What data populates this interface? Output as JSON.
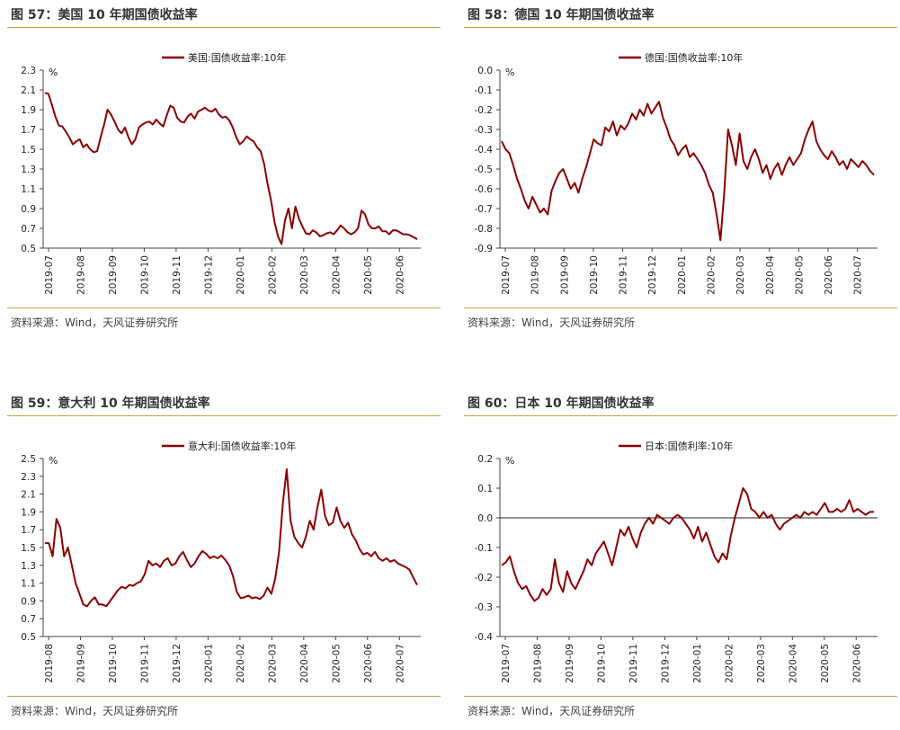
{
  "colors": {
    "line": "#8b0000",
    "rule": "#c9a04a"
  },
  "charts": [
    {
      "title": "图 57：美国 10 年期国债收益率",
      "source": "资料来源：Wind，天风证券研究所",
      "chart_data": {
        "type": "line",
        "legend": "美国:国债收益率:10年",
        "unit": "%",
        "ylim": [
          0.5,
          2.3
        ],
        "yticks": [
          0.5,
          0.7,
          0.9,
          1.1,
          1.3,
          1.5,
          1.7,
          1.9,
          2.1,
          2.3
        ],
        "xticks": [
          "2019-07",
          "2019-08",
          "2019-09",
          "2019-10",
          "2019-11",
          "2019-12",
          "2020-01",
          "2020-02",
          "2020-03",
          "2020-04",
          "2020-05",
          "2020-06"
        ],
        "zero_line": false,
        "series": [
          {
            "values": [
              2.07,
              2.06,
              1.95,
              1.83,
              1.74,
              1.73,
              1.68,
              1.62,
              1.55,
              1.58,
              1.6,
              1.52,
              1.55,
              1.5,
              1.47,
              1.48,
              1.62,
              1.75,
              1.9,
              1.85,
              1.78,
              1.7,
              1.66,
              1.72,
              1.62,
              1.55,
              1.6,
              1.72,
              1.75,
              1.77,
              1.78,
              1.75,
              1.8,
              1.76,
              1.73,
              1.84,
              1.94,
              1.92,
              1.82,
              1.78,
              1.77,
              1.83,
              1.86,
              1.81,
              1.88,
              1.9,
              1.92,
              1.89,
              1.88,
              1.91,
              1.85,
              1.82,
              1.83,
              1.79,
              1.72,
              1.62,
              1.55,
              1.58,
              1.63,
              1.6,
              1.58,
              1.52,
              1.48,
              1.35,
              1.15,
              0.98,
              0.76,
              0.62,
              0.54,
              0.78,
              0.9,
              0.7,
              0.92,
              0.8,
              0.72,
              0.65,
              0.64,
              0.68,
              0.66,
              0.62,
              0.63,
              0.65,
              0.66,
              0.64,
              0.68,
              0.73,
              0.7,
              0.66,
              0.64,
              0.66,
              0.7,
              0.88,
              0.84,
              0.74,
              0.7,
              0.7,
              0.72,
              0.67,
              0.67,
              0.64,
              0.68,
              0.68,
              0.66,
              0.64,
              0.64,
              0.63,
              0.61,
              0.59
            ]
          }
        ]
      }
    },
    {
      "title": "图 58：德国 10 年期国债收益率",
      "source": "资料来源：Wind，天风证券研究所",
      "chart_data": {
        "type": "line",
        "legend": "德国:国债收益率:10年",
        "unit": "%",
        "ylim": [
          -0.9,
          0.0
        ],
        "yticks": [
          -0.9,
          -0.8,
          -0.7,
          -0.6,
          -0.5,
          -0.4,
          -0.3,
          -0.2,
          -0.1,
          0.0
        ],
        "xticks": [
          "2019-07",
          "2019-08",
          "2019-09",
          "2019-10",
          "2019-11",
          "2019-12",
          "2020-01",
          "2020-02",
          "2020-03",
          "2020-04",
          "2020-05",
          "2020-06",
          "2020-07"
        ],
        "zero_line": false,
        "series": [
          {
            "values": [
              -0.36,
              -0.4,
              -0.42,
              -0.48,
              -0.55,
              -0.6,
              -0.66,
              -0.7,
              -0.64,
              -0.68,
              -0.72,
              -0.7,
              -0.73,
              -0.61,
              -0.56,
              -0.52,
              -0.5,
              -0.55,
              -0.6,
              -0.57,
              -0.62,
              -0.55,
              -0.49,
              -0.42,
              -0.35,
              -0.37,
              -0.38,
              -0.29,
              -0.31,
              -0.26,
              -0.33,
              -0.28,
              -0.3,
              -0.27,
              -0.22,
              -0.25,
              -0.2,
              -0.23,
              -0.17,
              -0.22,
              -0.19,
              -0.16,
              -0.24,
              -0.29,
              -0.35,
              -0.38,
              -0.43,
              -0.4,
              -0.38,
              -0.44,
              -0.42,
              -0.45,
              -0.48,
              -0.52,
              -0.58,
              -0.62,
              -0.73,
              -0.86,
              -0.62,
              -0.3,
              -0.38,
              -0.48,
              -0.32,
              -0.46,
              -0.5,
              -0.44,
              -0.4,
              -0.45,
              -0.52,
              -0.48,
              -0.55,
              -0.5,
              -0.47,
              -0.53,
              -0.48,
              -0.44,
              -0.48,
              -0.45,
              -0.42,
              -0.35,
              -0.3,
              -0.26,
              -0.36,
              -0.4,
              -0.43,
              -0.45,
              -0.41,
              -0.44,
              -0.48,
              -0.46,
              -0.5,
              -0.45,
              -0.47,
              -0.49,
              -0.46,
              -0.48,
              -0.51,
              -0.53
            ]
          }
        ]
      }
    },
    {
      "title": "图 59：意大利 10 年期国债收益率",
      "source": "资料来源：Wind，天风证券研究所",
      "chart_data": {
        "type": "line",
        "legend": "意大利:国债收益率:10年",
        "unit": "%",
        "ylim": [
          0.5,
          2.5
        ],
        "yticks": [
          0.5,
          0.7,
          0.9,
          1.1,
          1.3,
          1.5,
          1.7,
          1.9,
          2.1,
          2.3,
          2.5
        ],
        "xticks": [
          "2019-08",
          "2019-09",
          "2019-10",
          "2019-11",
          "2019-12",
          "2020-01",
          "2020-02",
          "2020-03",
          "2020-04",
          "2020-05",
          "2020-06",
          "2020-07"
        ],
        "zero_line": false,
        "series": [
          {
            "values": [
              1.55,
              1.55,
              1.4,
              1.82,
              1.72,
              1.4,
              1.5,
              1.3,
              1.1,
              0.98,
              0.86,
              0.84,
              0.9,
              0.94,
              0.86,
              0.86,
              0.84,
              0.9,
              0.96,
              1.02,
              1.06,
              1.04,
              1.08,
              1.07,
              1.1,
              1.12,
              1.2,
              1.35,
              1.3,
              1.32,
              1.28,
              1.35,
              1.38,
              1.3,
              1.32,
              1.4,
              1.45,
              1.36,
              1.28,
              1.32,
              1.4,
              1.46,
              1.43,
              1.38,
              1.4,
              1.38,
              1.41,
              1.36,
              1.3,
              1.18,
              1.0,
              0.93,
              0.94,
              0.96,
              0.93,
              0.94,
              0.92,
              0.96,
              1.05,
              0.98,
              1.15,
              1.45,
              2.0,
              2.38,
              1.8,
              1.62,
              1.55,
              1.5,
              1.62,
              1.8,
              1.7,
              1.95,
              2.15,
              1.85,
              1.75,
              1.78,
              1.95,
              1.8,
              1.72,
              1.78,
              1.65,
              1.58,
              1.48,
              1.42,
              1.44,
              1.4,
              1.45,
              1.38,
              1.35,
              1.38,
              1.34,
              1.36,
              1.32,
              1.3,
              1.28,
              1.25,
              1.16,
              1.08
            ]
          }
        ]
      }
    },
    {
      "title": "图 60：日本 10 年期国债收益率",
      "source": "资料来源：Wind，天风证券研究所",
      "chart_data": {
        "type": "line",
        "legend": "日本:国债利率:10年",
        "unit": "%",
        "ylim": [
          -0.4,
          0.2
        ],
        "yticks": [
          -0.4,
          -0.3,
          -0.2,
          -0.1,
          0.0,
          0.1,
          0.2
        ],
        "xticks": [
          "2019-07",
          "2019-08",
          "2019-09",
          "2019-10",
          "2019-11",
          "2019-12",
          "2020-01",
          "2020-02",
          "2020-03",
          "2020-04",
          "2020-05",
          "2020-06"
        ],
        "zero_line": true,
        "series": [
          {
            "values": [
              -0.16,
              -0.15,
              -0.13,
              -0.18,
              -0.22,
              -0.24,
              -0.23,
              -0.26,
              -0.28,
              -0.27,
              -0.24,
              -0.26,
              -0.24,
              -0.14,
              -0.22,
              -0.25,
              -0.18,
              -0.22,
              -0.24,
              -0.21,
              -0.18,
              -0.14,
              -0.16,
              -0.12,
              -0.1,
              -0.08,
              -0.12,
              -0.16,
              -0.1,
              -0.04,
              -0.06,
              -0.03,
              -0.07,
              -0.1,
              -0.05,
              -0.02,
              0.0,
              -0.02,
              0.01,
              0.0,
              -0.01,
              -0.02,
              0.0,
              0.01,
              0.0,
              -0.02,
              -0.04,
              -0.07,
              -0.03,
              -0.08,
              -0.05,
              -0.09,
              -0.13,
              -0.15,
              -0.12,
              -0.14,
              -0.06,
              0.0,
              0.05,
              0.1,
              0.08,
              0.03,
              0.02,
              0.0,
              0.02,
              0.0,
              0.01,
              -0.02,
              -0.04,
              -0.02,
              -0.01,
              0.0,
              0.01,
              0.0,
              0.02,
              0.01,
              0.02,
              0.01,
              0.03,
              0.05,
              0.02,
              0.02,
              0.03,
              0.02,
              0.03,
              0.06,
              0.02,
              0.03,
              0.02,
              0.01,
              0.02,
              0.02
            ]
          }
        ]
      }
    }
  ]
}
